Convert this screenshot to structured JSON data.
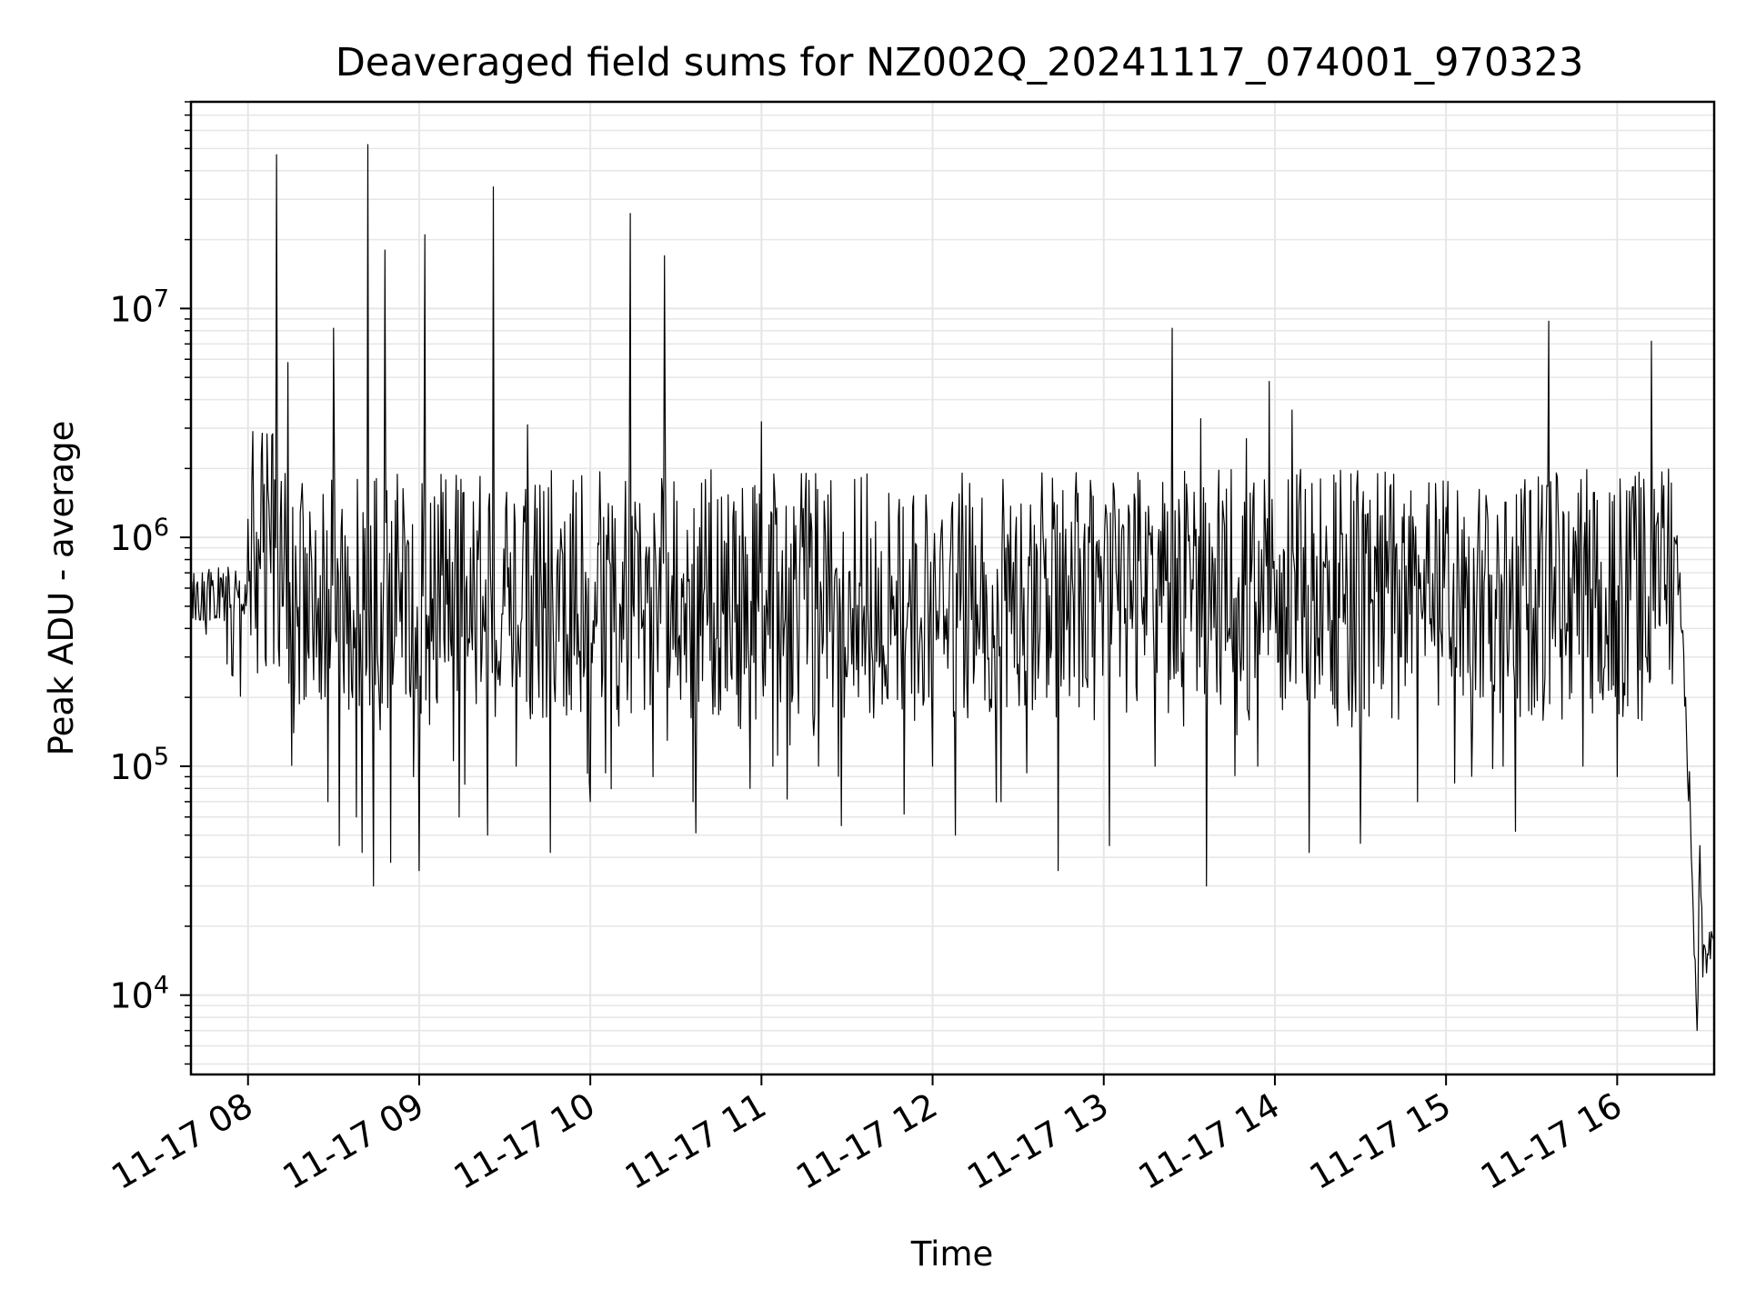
{
  "chart_data": {
    "type": "line",
    "title": "Deaveraged field sums for NZ002Q_20241117_074001_970323",
    "xlabel": "Time",
    "ylabel": "Peak ADU - average",
    "x_tick_labels": [
      "11-17 08",
      "11-17 09",
      "11-17 10",
      "11-17 11",
      "11-17 12",
      "11-17 13",
      "11-17 14",
      "11-17 15",
      "11-17 16"
    ],
    "y_tick_labels": [
      {
        "base": "10",
        "exp": "4"
      },
      {
        "base": "10",
        "exp": "5"
      },
      {
        "base": "10",
        "exp": "6"
      },
      {
        "base": "10",
        "exp": "7"
      }
    ],
    "x_axis_type": "datetime",
    "y_scale": "log",
    "xlim": [
      "2024-11-17 07:40",
      "2024-11-17 16:34"
    ],
    "ylim": [
      4500,
      80000000
    ],
    "grid": true,
    "line_color": "#000000",
    "grid_color": "#e6e6e6",
    "series": [
      {
        "points": [
          [
            "2024-11-17 07:40",
            400000
          ],
          [
            "2024-11-17 07:42",
            620000
          ],
          [
            "2024-11-17 07:44",
            700000
          ],
          [
            "2024-11-17 07:48",
            560000
          ],
          [
            "2024-11-17 07:52",
            540000
          ],
          [
            "2024-11-17 07:56",
            600000
          ],
          [
            "2024-11-17 08:00",
            1200000
          ],
          [
            "2024-11-17 08:04",
            800000
          ],
          [
            "2024-11-17 08:06",
            300000
          ],
          [
            "2024-11-17 08:08",
            700000
          ],
          [
            "2024-11-17 08:10",
            47000000
          ],
          [
            "2024-11-17 08:12",
            500000
          ],
          [
            "2024-11-17 08:14",
            5800000
          ],
          [
            "2024-11-17 08:16",
            140000
          ],
          [
            "2024-11-17 08:20",
            900000
          ],
          [
            "2024-11-17 08:24",
            300000
          ],
          [
            "2024-11-17 08:28",
            70000
          ],
          [
            "2024-11-17 08:30",
            8200000
          ],
          [
            "2024-11-17 08:32",
            45000
          ],
          [
            "2024-11-17 08:36",
            400000
          ],
          [
            "2024-11-17 08:38",
            60000
          ],
          [
            "2024-11-17 08:40",
            42000
          ],
          [
            "2024-11-17 08:42",
            52000000
          ],
          [
            "2024-11-17 08:44",
            30000
          ],
          [
            "2024-11-17 08:46",
            200000
          ],
          [
            "2024-11-17 08:48",
            18000000
          ],
          [
            "2024-11-17 08:50",
            38000
          ],
          [
            "2024-11-17 08:54",
            300000
          ],
          [
            "2024-11-17 08:58",
            90000
          ],
          [
            "2024-11-17 09:00",
            35000
          ],
          [
            "2024-11-17 09:02",
            21000000
          ],
          [
            "2024-11-17 09:06",
            200000
          ],
          [
            "2024-11-17 09:10",
            800000
          ],
          [
            "2024-11-17 09:14",
            60000
          ],
          [
            "2024-11-17 09:18",
            900000
          ],
          [
            "2024-11-17 09:22",
            300000
          ],
          [
            "2024-11-17 09:24",
            50000
          ],
          [
            "2024-11-17 09:26",
            34000000
          ],
          [
            "2024-11-17 09:30",
            500000
          ],
          [
            "2024-11-17 09:34",
            100000
          ],
          [
            "2024-11-17 09:38",
            3100000
          ],
          [
            "2024-11-17 09:42",
            200000
          ],
          [
            "2024-11-17 09:46",
            42000
          ],
          [
            "2024-11-17 09:50",
            900000
          ],
          [
            "2024-11-17 09:56",
            300000
          ],
          [
            "2024-11-17 10:00",
            70000
          ],
          [
            "2024-11-17 10:06",
            800000
          ],
          [
            "2024-11-17 10:10",
            150000
          ],
          [
            "2024-11-17 10:14",
            26000000
          ],
          [
            "2024-11-17 10:18",
            400000
          ],
          [
            "2024-11-17 10:22",
            90000
          ],
          [
            "2024-11-17 10:26",
            17000000
          ],
          [
            "2024-11-17 10:30",
            300000
          ],
          [
            "2024-11-17 10:36",
            70000
          ],
          [
            "2024-11-17 10:40",
            600000
          ],
          [
            "2024-11-17 10:46",
            1500000
          ],
          [
            "2024-11-17 10:52",
            150000
          ],
          [
            "2024-11-17 10:56",
            80000
          ],
          [
            "2024-11-17 11:00",
            3200000
          ],
          [
            "2024-11-17 11:04",
            100000
          ],
          [
            "2024-11-17 11:08",
            400000
          ],
          [
            "2024-11-17 11:14",
            1900000
          ],
          [
            "2024-11-17 11:20",
            100000
          ],
          [
            "2024-11-17 11:28",
            55000
          ],
          [
            "2024-11-17 11:36",
            500000
          ],
          [
            "2024-11-17 11:44",
            200000
          ],
          [
            "2024-11-17 11:52",
            800000
          ],
          [
            "2024-11-17 12:00",
            100000
          ],
          [
            "2024-11-17 12:08",
            50000
          ],
          [
            "2024-11-17 12:16",
            400000
          ],
          [
            "2024-11-17 12:24",
            70000
          ],
          [
            "2024-11-17 12:32",
            600000
          ],
          [
            "2024-11-17 12:40",
            200000
          ],
          [
            "2024-11-17 12:44",
            35000
          ],
          [
            "2024-11-17 12:50",
            1500000
          ],
          [
            "2024-11-17 12:56",
            300000
          ],
          [
            "2024-11-17 13:02",
            45000
          ],
          [
            "2024-11-17 13:10",
            400000
          ],
          [
            "2024-11-17 13:18",
            100000
          ],
          [
            "2024-11-17 13:24",
            8200000
          ],
          [
            "2024-11-17 13:28",
            150000
          ],
          [
            "2024-11-17 13:34",
            3300000
          ],
          [
            "2024-11-17 13:36",
            30000
          ],
          [
            "2024-11-17 13:44",
            400000
          ],
          [
            "2024-11-17 13:50",
            2700000
          ],
          [
            "2024-11-17 13:54",
            100000
          ],
          [
            "2024-11-17 13:58",
            4800000
          ],
          [
            "2024-11-17 14:02",
            200000
          ],
          [
            "2024-11-17 14:06",
            3600000
          ],
          [
            "2024-11-17 14:12",
            42000
          ],
          [
            "2024-11-17 14:16",
            1800000
          ],
          [
            "2024-11-17 14:22",
            150000
          ],
          [
            "2024-11-17 14:30",
            46000
          ],
          [
            "2024-11-17 14:36",
            1900000
          ],
          [
            "2024-11-17 14:44",
            300000
          ],
          [
            "2024-11-17 14:50",
            70000
          ],
          [
            "2024-11-17 14:58",
            400000
          ],
          [
            "2024-11-17 15:04",
            1600000
          ],
          [
            "2024-11-17 15:12",
            200000
          ],
          [
            "2024-11-17 15:20",
            100000
          ],
          [
            "2024-11-17 15:28",
            800000
          ],
          [
            "2024-11-17 15:36",
            8800000
          ],
          [
            "2024-11-17 15:40",
            300000
          ],
          [
            "2024-11-17 15:48",
            100000
          ],
          [
            "2024-11-17 15:56",
            600000
          ],
          [
            "2024-11-17 16:00",
            90000
          ],
          [
            "2024-11-17 16:06",
            800000
          ],
          [
            "2024-11-17 16:10",
            300000
          ],
          [
            "2024-11-17 16:12",
            7200000
          ],
          [
            "2024-11-17 16:16",
            1100000
          ],
          [
            "2024-11-17 16:20",
            1000000
          ],
          [
            "2024-11-17 16:22",
            700000
          ],
          [
            "2024-11-17 16:24",
            200000
          ],
          [
            "2024-11-17 16:26",
            40000
          ],
          [
            "2024-11-17 16:27",
            15000
          ],
          [
            "2024-11-17 16:28",
            7000
          ],
          [
            "2024-11-17 16:29",
            45000
          ],
          [
            "2024-11-17 16:30",
            12000
          ],
          [
            "2024-11-17 16:32",
            15000
          ],
          [
            "2024-11-17 16:34",
            17000
          ]
        ]
      }
    ]
  }
}
